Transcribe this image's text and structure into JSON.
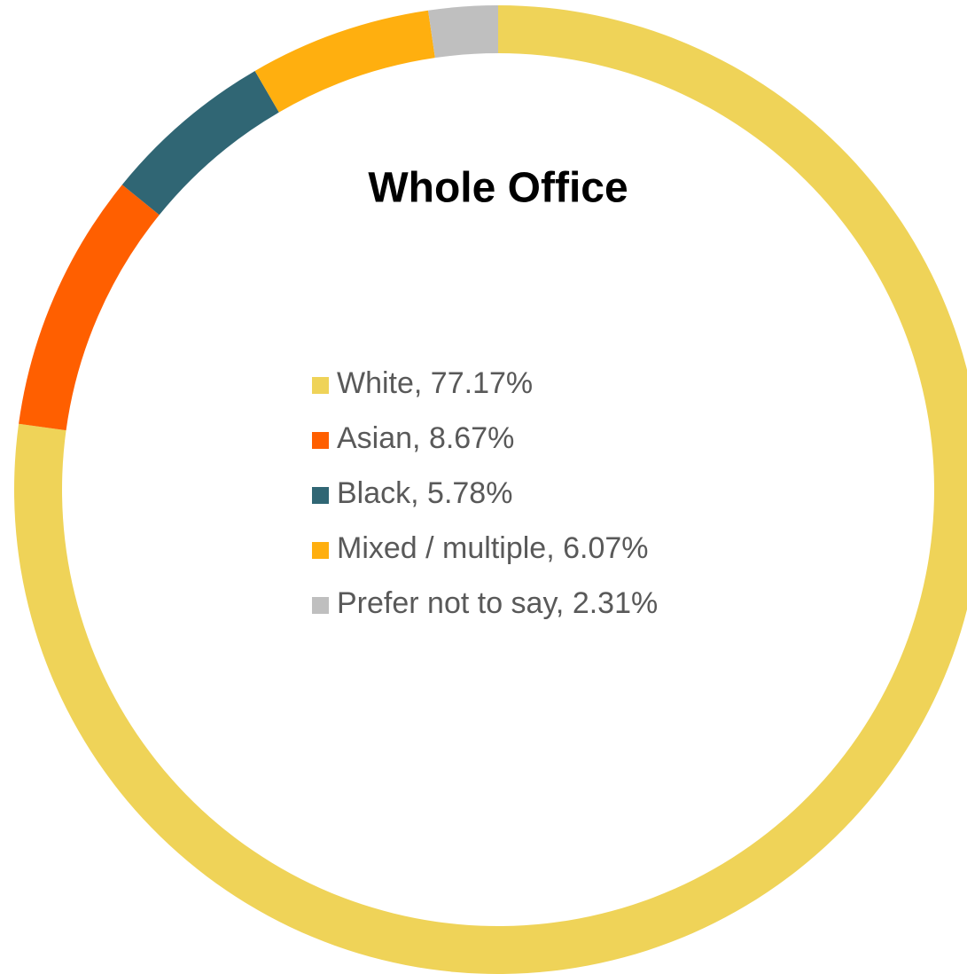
{
  "chart_data": {
    "type": "donut",
    "title": "Whole Office",
    "values": [
      77.17,
      8.67,
      5.78,
      6.07,
      2.31
    ],
    "value_labels": [
      "White, 77.17%",
      "Asian, 8.67%",
      "Black, 5.78%",
      "Mixed / multiple, 6.07%",
      "Prefer not to say, 2.31%"
    ],
    "colors": [
      "#efd358",
      "#ff5f00",
      "#306674",
      "#ffaf0f",
      "#bfbfbf"
    ]
  }
}
